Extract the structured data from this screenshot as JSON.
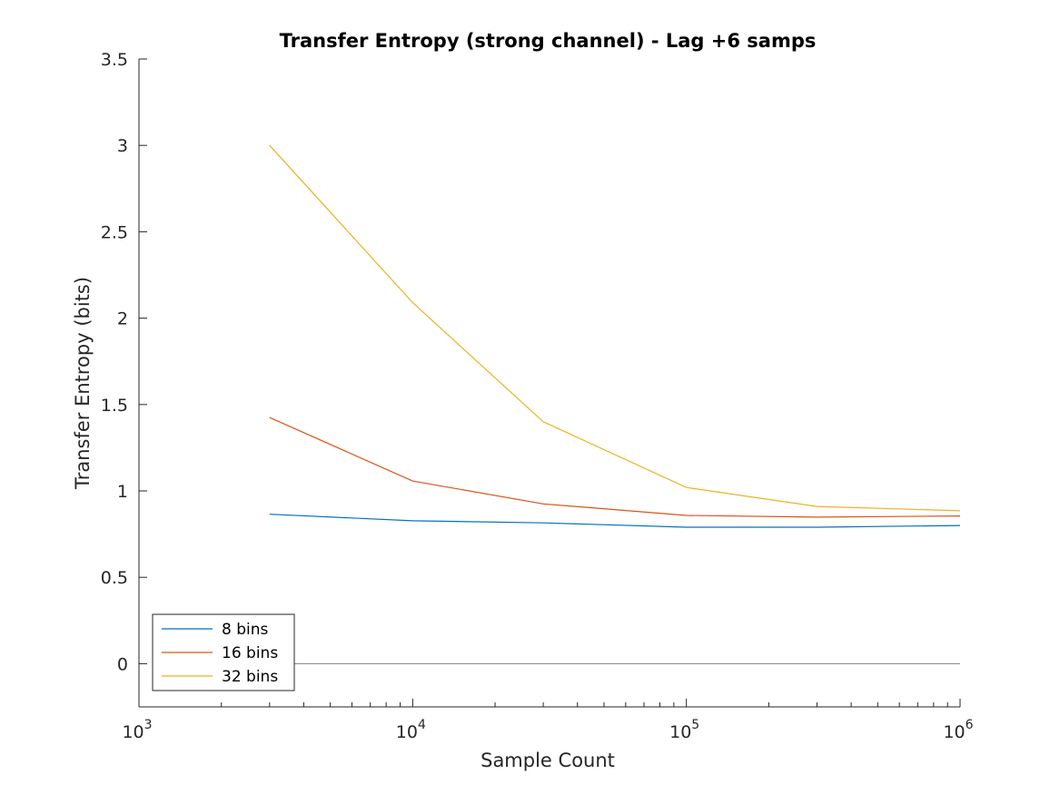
{
  "chart_data": {
    "type": "line",
    "title": "Transfer Entropy (strong channel) - Lag +6 samps",
    "xlabel": "Sample Count",
    "ylabel": "Transfer Entropy (bits)",
    "xscale": "log",
    "xlim": [
      1000,
      1000000
    ],
    "ylim": [
      -0.25,
      3.5
    ],
    "xticks": [
      {
        "base": "10",
        "exp": "3",
        "value": 1000
      },
      {
        "base": "10",
        "exp": "4",
        "value": 10000
      },
      {
        "base": "10",
        "exp": "5",
        "value": 100000
      },
      {
        "base": "10",
        "exp": "6",
        "value": 1000000
      }
    ],
    "yticks": [
      {
        "label": "0",
        "value": 0
      },
      {
        "label": "0.5",
        "value": 0.5
      },
      {
        "label": "1",
        "value": 1
      },
      {
        "label": "1.5",
        "value": 1.5
      },
      {
        "label": "2",
        "value": 2
      },
      {
        "label": "2.5",
        "value": 2.5
      },
      {
        "label": "3",
        "value": 3
      },
      {
        "label": "3.5",
        "value": 3.5
      }
    ],
    "x": [
      3000,
      10000,
      30000,
      100000,
      300000,
      1000000
    ],
    "series": [
      {
        "name": "8 bins",
        "color": "#0072BD",
        "values": [
          0.865,
          0.827,
          0.815,
          0.79,
          0.79,
          0.8
        ]
      },
      {
        "name": "16 bins",
        "color": "#D95319",
        "values": [
          1.425,
          1.057,
          0.925,
          0.858,
          0.848,
          0.855
        ]
      },
      {
        "name": "32 bins",
        "color": "#EDB120",
        "values": [
          3.0,
          2.09,
          1.4,
          1.02,
          0.91,
          0.885
        ]
      }
    ],
    "reference_line": {
      "y": 0,
      "x_from": 3000,
      "x_to": 1000000,
      "color": "#808080"
    },
    "grid": false,
    "legend_position": "bottom-left"
  }
}
